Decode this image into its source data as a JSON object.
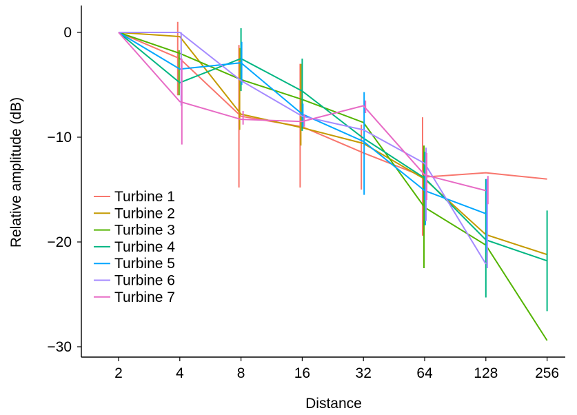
{
  "chart_data": {
    "type": "line",
    "xlabel": "Distance",
    "ylabel": "Relative amplitude (dB)",
    "x": [
      2,
      4,
      8,
      16,
      32,
      64,
      128,
      256
    ],
    "x_scale": "log2",
    "x_tick_labels": [
      "2",
      "4",
      "8",
      "16",
      "32",
      "64",
      "128",
      "256"
    ],
    "ylim": [
      -31,
      2.5
    ],
    "y_ticks": [
      0,
      -10,
      -20,
      -30
    ],
    "y_tick_labels": [
      "0",
      "−10",
      "−20",
      "−30"
    ],
    "grid": false,
    "legend_position": "left",
    "series": [
      {
        "name": "Turbine 1",
        "color": "#F8766D",
        "values": [
          0,
          -2.5,
          -8,
          -9,
          -11.5,
          -13.8,
          -13.4,
          -14
        ],
        "error_bars": [
          null,
          [
            -6,
            1
          ],
          [
            -14.8,
            -1.2
          ],
          [
            -14.8,
            -3
          ],
          [
            -15,
            -8.8
          ],
          [
            -19.4,
            -8.1
          ],
          null,
          null
        ]
      },
      {
        "name": "Turbine 2",
        "color": "#C49A00",
        "values": [
          0,
          -0.4,
          -7.8,
          -9.1,
          -10.6,
          -14,
          -19.3,
          -21.2
        ],
        "error_bars": [
          null,
          null,
          [
            -9.3,
            -1.5
          ],
          [
            -10.8,
            -3
          ],
          null,
          null,
          null,
          null
        ]
      },
      {
        "name": "Turbine 3",
        "color": "#53B400",
        "values": [
          0,
          -2,
          -4.5,
          -6.4,
          -8.6,
          -16.7,
          -20.3,
          -29.4
        ],
        "error_bars": [
          null,
          [
            -6,
            -1.7
          ],
          null,
          null,
          null,
          [
            -22.5,
            -10.8
          ],
          null,
          null
        ]
      },
      {
        "name": "Turbine 4",
        "color": "#00B682",
        "values": [
          0,
          -4.8,
          -2.5,
          -5.6,
          -10.1,
          -13.9,
          -19.8,
          -21.8
        ],
        "error_bars": [
          null,
          null,
          [
            -5.6,
            0.4
          ],
          [
            -9.4,
            -2.5
          ],
          null,
          [
            -16,
            -11.4
          ],
          [
            -25.3,
            -14
          ],
          [
            -26.6,
            -17
          ]
        ]
      },
      {
        "name": "Turbine 5",
        "color": "#00A6FF",
        "values": [
          0,
          -3.5,
          -2.9,
          -7.8,
          -10.4,
          -15.1,
          -17.3,
          null
        ],
        "error_bars": [
          null,
          null,
          [
            -5,
            -0.9
          ],
          [
            -9,
            -6.8
          ],
          [
            -15.5,
            -5.7
          ],
          [
            -18.4,
            -13.5
          ],
          [
            -21,
            -14
          ],
          null
        ]
      },
      {
        "name": "Turbine 6",
        "color": "#A58AFF",
        "values": [
          0,
          0,
          -4.6,
          -8,
          -9.3,
          -12.5,
          -22.1,
          null
        ],
        "error_bars": [
          null,
          [
            -7,
            0
          ],
          null,
          null,
          null,
          [
            -18,
            -11
          ],
          [
            -22.5,
            -14
          ],
          null
        ]
      },
      {
        "name": "Turbine 7",
        "color": "#E76BC5",
        "values": [
          0,
          -6.6,
          -8.3,
          -8.5,
          -7,
          -13.6,
          -15.1,
          null
        ],
        "error_bars": [
          null,
          [
            -10.7,
            -2.5
          ],
          [
            -8.8,
            -7.5
          ],
          [
            -9,
            -7.8
          ],
          [
            -7.7,
            -6.5
          ],
          [
            -16,
            -11.5
          ],
          [
            -16.4,
            -13.7
          ],
          null
        ]
      }
    ]
  }
}
